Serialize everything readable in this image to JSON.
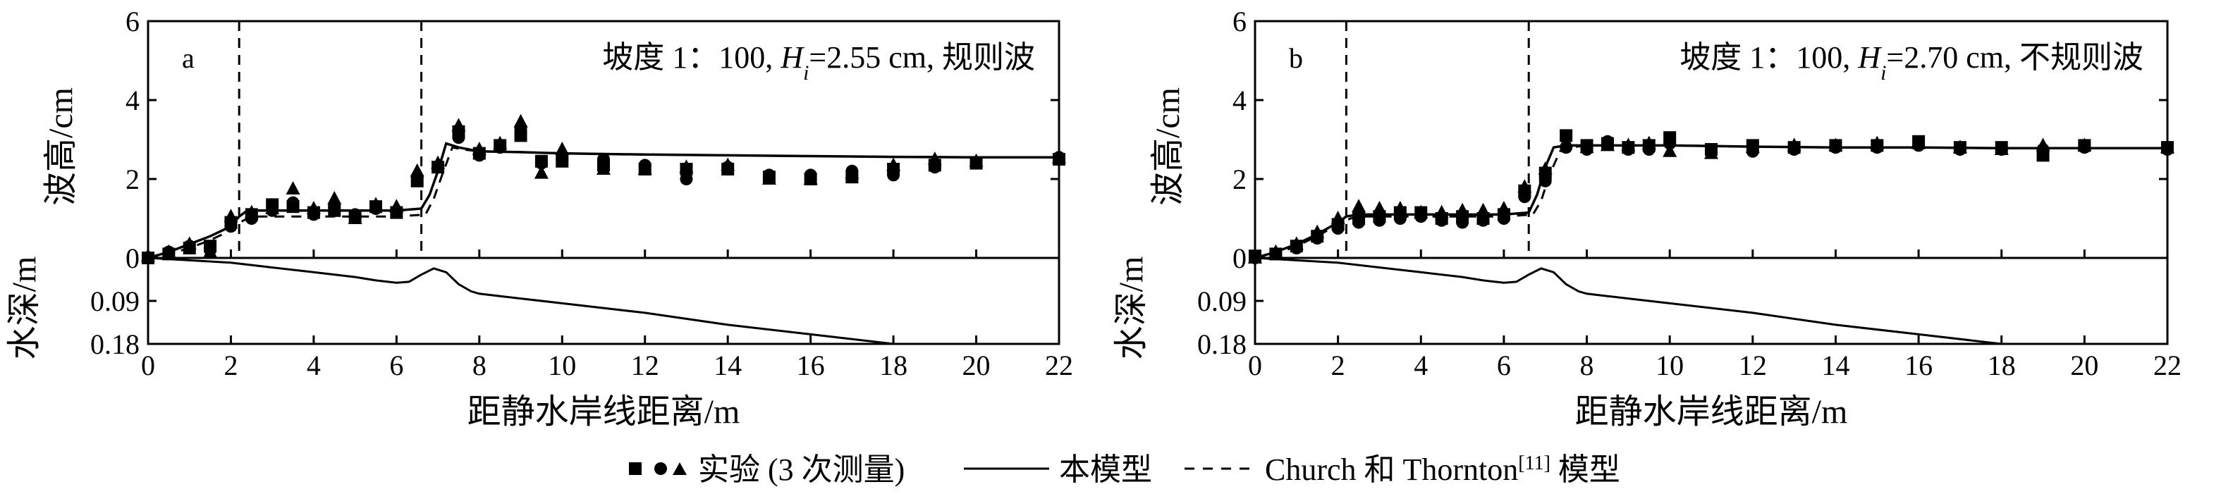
{
  "chart_data": [
    {
      "type": "scatter",
      "panel_letter": "a",
      "annotation": {
        "prefix": "坡度 1：100, ",
        "var": "H",
        "sub": "i",
        "suffix": "=2.55 cm, 规则波"
      },
      "upper": {
        "ylabel": "波高/cm",
        "ylim": [
          0,
          6
        ],
        "yticks": [
          "0",
          "2",
          "4",
          "6"
        ],
        "series": [
          {
            "name": "实验 (3 次测量)",
            "marker": "square",
            "x": [
              0,
              0.5,
              1,
              1.5,
              2,
              2.5,
              3,
              3.5,
              4,
              4.5,
              5,
              5.5,
              6,
              6.5,
              7,
              7.5,
              8,
              8.5,
              9,
              9.5,
              10,
              11,
              12,
              13,
              14,
              15,
              16,
              17,
              18,
              19,
              20,
              22
            ],
            "y": [
              0,
              0.1,
              0.25,
              0.3,
              0.9,
              1.1,
              1.35,
              1.3,
              1.15,
              1.2,
              1.05,
              1.3,
              1.15,
              1.95,
              2.3,
              3.2,
              2.65,
              2.85,
              3.1,
              2.45,
              2.45,
              2.35,
              2.25,
              2.25,
              2.25,
              2.05,
              2.0,
              2.05,
              2.25,
              2.35,
              2.4,
              2.5
            ]
          },
          {
            "name": "",
            "marker": "circle",
            "x": [
              0,
              0.5,
              1,
              1.5,
              2,
              2.5,
              3,
              3.5,
              4,
              4.5,
              5,
              5.5,
              6,
              6.5,
              7,
              7.5,
              8,
              8.5,
              9,
              9.5,
              10,
              11,
              12,
              13,
              14,
              15,
              16,
              17,
              18,
              19,
              20,
              22
            ],
            "y": [
              0,
              0.15,
              0.3,
              0.2,
              0.8,
              1.0,
              1.2,
              1.4,
              1.1,
              1.3,
              1.1,
              1.25,
              1.15,
              2.05,
              2.3,
              3.05,
              2.6,
              2.8,
              3.3,
              2.4,
              2.5,
              2.5,
              2.35,
              2.0,
              2.3,
              2.1,
              2.1,
              2.2,
              2.1,
              2.3,
              2.4,
              2.55
            ]
          },
          {
            "name": "",
            "marker": "triangle",
            "x": [
              0,
              0.5,
              1,
              1.5,
              2,
              2.5,
              3,
              3.5,
              4,
              4.5,
              5,
              5.5,
              6,
              6.5,
              7,
              7.5,
              8,
              8.5,
              9,
              9.5,
              10,
              11,
              12,
              13,
              14,
              15,
              16,
              17,
              18,
              19,
              20,
              22
            ],
            "y": [
              0.05,
              0.15,
              0.35,
              0.15,
              1.05,
              1.15,
              1.25,
              1.75,
              1.25,
              1.5,
              1.0,
              1.35,
              1.3,
              2.2,
              2.4,
              3.35,
              2.75,
              2.9,
              3.45,
              2.15,
              2.75,
              2.25,
              2.25,
              2.3,
              2.35,
              2.0,
              2.0,
              2.15,
              2.35,
              2.5,
              2.45,
              2.55
            ]
          }
        ],
        "model_line": {
          "name": "本模型",
          "x": [
            0,
            0.5,
            1,
            1.5,
            2,
            2.2,
            2.4,
            3,
            4,
            5,
            6,
            6.6,
            6.8,
            7,
            7.2,
            7.5,
            8,
            9,
            10,
            12,
            14,
            16,
            18,
            20,
            22
          ],
          "y": [
            0,
            0.15,
            0.35,
            0.55,
            0.8,
            1.05,
            1.2,
            1.2,
            1.2,
            1.2,
            1.2,
            1.25,
            1.6,
            2.2,
            2.9,
            2.8,
            2.7,
            2.68,
            2.65,
            2.62,
            2.6,
            2.58,
            2.56,
            2.55,
            2.55
          ]
        },
        "church_line": {
          "name": "Church 和 Thornton[11] 模型",
          "x": [
            0,
            0.5,
            1,
            1.5,
            2,
            2.3,
            2.6,
            3,
            4,
            5,
            6,
            6.7,
            6.9,
            7.1,
            7.35,
            7.6,
            8,
            9,
            10,
            12,
            14,
            16,
            18,
            20,
            22
          ],
          "y": [
            0,
            0.1,
            0.25,
            0.45,
            0.7,
            0.95,
            1.05,
            1.05,
            1.05,
            1.05,
            1.05,
            1.1,
            1.5,
            2.1,
            2.8,
            2.75,
            2.7,
            2.68,
            2.65,
            2.62,
            2.6,
            2.58,
            2.56,
            2.55,
            2.55
          ]
        },
        "vlines": [
          2.2,
          6.6
        ]
      },
      "lower": {
        "ylabel": "水深/m",
        "ylim": [
          0,
          0.18
        ],
        "yticks": [
          "0",
          "0.09",
          "0.18"
        ],
        "bed": {
          "x": [
            0,
            2,
            4,
            5,
            5.5,
            6,
            6.3,
            6.6,
            6.9,
            7.2,
            7.5,
            7.8,
            8,
            8.5,
            9,
            10,
            12,
            14,
            16,
            18
          ],
          "y": [
            0,
            0.01,
            0.03,
            0.04,
            0.047,
            0.052,
            0.05,
            0.035,
            0.022,
            0.03,
            0.055,
            0.07,
            0.075,
            0.08,
            0.085,
            0.095,
            0.115,
            0.14,
            0.16,
            0.18
          ]
        }
      },
      "xlabel": "距静水岸线距离/m",
      "xlim": [
        0,
        22
      ],
      "xticks": [
        "0",
        "2",
        "4",
        "6",
        "8",
        "10",
        "12",
        "14",
        "16",
        "18",
        "20",
        "22"
      ]
    },
    {
      "type": "scatter",
      "panel_letter": "b",
      "annotation": {
        "prefix": "坡度 1：100, ",
        "var": "H",
        "sub": "i",
        "suffix": "=2.70 cm, 不规则波"
      },
      "upper": {
        "ylabel": "波高/cm",
        "ylim": [
          0,
          6
        ],
        "yticks": [
          "0",
          "2",
          "4",
          "6"
        ],
        "series": [
          {
            "name": "实验 (3 次测量)",
            "marker": "square",
            "x": [
              0,
              0.5,
              1,
              1.5,
              2,
              2.5,
              3,
              3.5,
              4,
              4.5,
              5,
              5.5,
              6,
              6.5,
              7,
              7.5,
              8,
              8.5,
              9,
              9.5,
              10,
              11,
              12,
              13,
              14,
              15,
              16,
              17,
              18,
              19,
              20,
              22
            ],
            "y": [
              0.05,
              0.1,
              0.3,
              0.55,
              0.85,
              1.0,
              1.05,
              1.15,
              1.15,
              1.0,
              1.05,
              1.0,
              1.1,
              1.7,
              2.15,
              3.1,
              2.85,
              2.9,
              2.8,
              2.85,
              3.05,
              2.75,
              2.85,
              2.8,
              2.85,
              2.85,
              2.95,
              2.8,
              2.8,
              2.6,
              2.85,
              2.8
            ]
          },
          {
            "name": "",
            "marker": "circle",
            "x": [
              0,
              0.5,
              1,
              1.5,
              2,
              2.5,
              3,
              3.5,
              4,
              4.5,
              5,
              5.5,
              6,
              6.5,
              7,
              7.5,
              8,
              8.5,
              9,
              9.5,
              10,
              11,
              12,
              13,
              14,
              15,
              16,
              17,
              18,
              19,
              20,
              22
            ],
            "y": [
              0,
              0.1,
              0.25,
              0.5,
              0.75,
              0.9,
              0.95,
              1.0,
              1.05,
              0.95,
              0.9,
              0.95,
              1.0,
              1.55,
              1.95,
              2.8,
              2.75,
              2.95,
              2.75,
              2.75,
              2.9,
              2.75,
              2.7,
              2.75,
              2.8,
              2.8,
              2.85,
              2.75,
              2.75,
              2.75,
              2.8,
              2.75
            ]
          },
          {
            "name": "",
            "marker": "triangle",
            "x": [
              0,
              0.5,
              1,
              1.5,
              2,
              2.5,
              3,
              3.5,
              4,
              4.5,
              5,
              5.5,
              6,
              6.5,
              7,
              7.5,
              8,
              8.5,
              9,
              9.5,
              10,
              11,
              12,
              13,
              14,
              15,
              16,
              17,
              18,
              19,
              20,
              22
            ],
            "y": [
              0,
              0.15,
              0.35,
              0.65,
              1.0,
              1.3,
              1.25,
              1.25,
              1.15,
              1.15,
              1.2,
              1.2,
              1.25,
              1.8,
              2.25,
              2.95,
              2.8,
              2.85,
              2.85,
              2.9,
              2.7,
              2.65,
              2.8,
              2.85,
              2.85,
              2.9,
              2.9,
              2.8,
              2.75,
              2.85,
              2.85,
              2.8
            ]
          }
        ],
        "model_line": {
          "name": "本模型",
          "x": [
            0,
            0.5,
            1,
            1.5,
            2,
            2.2,
            2.5,
            3,
            4,
            5,
            6,
            6.6,
            6.8,
            7,
            7.2,
            7.5,
            8,
            9,
            10,
            12,
            14,
            16,
            18,
            20,
            22
          ],
          "y": [
            0,
            0.15,
            0.35,
            0.6,
            0.9,
            1.05,
            1.1,
            1.1,
            1.1,
            1.1,
            1.1,
            1.15,
            1.6,
            2.3,
            2.8,
            2.85,
            2.85,
            2.85,
            2.85,
            2.82,
            2.8,
            2.8,
            2.78,
            2.78,
            2.78
          ]
        },
        "church_line": {
          "name": "Church 和 Thornton[11] 模型",
          "x": [
            0,
            0.5,
            1,
            1.5,
            2,
            2.3,
            2.6,
            3,
            4,
            5,
            6,
            6.7,
            6.9,
            7.1,
            7.35,
            7.6,
            8,
            9,
            10,
            12,
            14,
            16,
            18,
            20,
            22
          ],
          "y": [
            0,
            0.1,
            0.3,
            0.55,
            0.85,
            1.0,
            1.05,
            1.05,
            1.05,
            1.05,
            1.05,
            1.1,
            1.45,
            2.1,
            2.7,
            2.8,
            2.85,
            2.85,
            2.85,
            2.82,
            2.8,
            2.8,
            2.78,
            2.78,
            2.78
          ]
        },
        "vlines": [
          2.2,
          6.6
        ]
      },
      "lower": {
        "ylabel": "水深/m",
        "ylim": [
          0,
          0.18
        ],
        "yticks": [
          "0",
          "0.09",
          "0.18"
        ],
        "bed": {
          "x": [
            0,
            2,
            4,
            5,
            5.5,
            6,
            6.3,
            6.6,
            6.9,
            7.2,
            7.5,
            7.8,
            8,
            8.5,
            9,
            10,
            12,
            14,
            16,
            18
          ],
          "y": [
            0,
            0.01,
            0.03,
            0.04,
            0.047,
            0.052,
            0.05,
            0.035,
            0.022,
            0.03,
            0.055,
            0.07,
            0.075,
            0.08,
            0.085,
            0.095,
            0.115,
            0.14,
            0.16,
            0.18
          ]
        }
      },
      "xlabel": "距静水岸线距离/m",
      "xlim": [
        0,
        22
      ],
      "xticks": [
        "0",
        "2",
        "4",
        "6",
        "8",
        "10",
        "12",
        "14",
        "16",
        "18",
        "20",
        "22"
      ]
    }
  ],
  "legend": {
    "experiment_label": "实验 (3 次测量)",
    "model_label": "本模型",
    "church_prefix": "Church 和 Thornton",
    "church_ref": "[11]",
    "church_suffix": " 模型"
  }
}
